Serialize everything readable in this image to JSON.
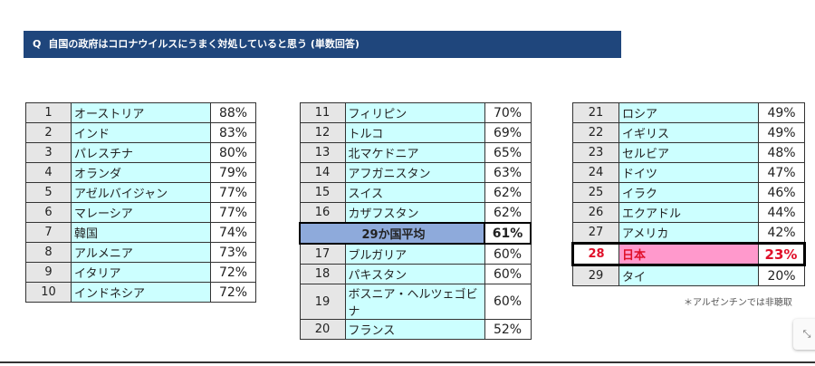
{
  "question": {
    "prefix": "Q",
    "text": "自国の政府はコロナウイルスにうまく対処していると思う (単数回答)"
  },
  "tables": [
    [
      {
        "rank": "1",
        "name": "オーストリア",
        "pct": "88%"
      },
      {
        "rank": "2",
        "name": "インド",
        "pct": "83%"
      },
      {
        "rank": "3",
        "name": "パレスチナ",
        "pct": "80%"
      },
      {
        "rank": "4",
        "name": "オランダ",
        "pct": "79%"
      },
      {
        "rank": "5",
        "name": "アゼルバイジャン",
        "pct": "77%"
      },
      {
        "rank": "6",
        "name": "マレーシア",
        "pct": "77%"
      },
      {
        "rank": "7",
        "name": "韓国",
        "pct": "74%"
      },
      {
        "rank": "8",
        "name": "アルメニア",
        "pct": "73%"
      },
      {
        "rank": "9",
        "name": "イタリア",
        "pct": "72%"
      },
      {
        "rank": "10",
        "name": "インドネシア",
        "pct": "72%"
      }
    ],
    [
      {
        "rank": "11",
        "name": "フィリピン",
        "pct": "70%"
      },
      {
        "rank": "12",
        "name": "トルコ",
        "pct": "69%"
      },
      {
        "rank": "13",
        "name": "北マケドニア",
        "pct": "65%"
      },
      {
        "rank": "14",
        "name": "アフガニスタン",
        "pct": "63%"
      },
      {
        "rank": "15",
        "name": "スイス",
        "pct": "62%"
      },
      {
        "rank": "16",
        "name": "カザフスタン",
        "pct": "62%"
      },
      {
        "avg": true,
        "name": "29か国平均",
        "pct": "61%"
      },
      {
        "rank": "17",
        "name": "ブルガリア",
        "pct": "60%"
      },
      {
        "rank": "18",
        "name": "パキスタン",
        "pct": "60%"
      },
      {
        "rank": "19",
        "name": "ボスニア・ヘルツェゴビナ",
        "pct": "60%"
      },
      {
        "rank": "20",
        "name": "フランス",
        "pct": "52%"
      }
    ],
    [
      {
        "rank": "21",
        "name": "ロシア",
        "pct": "49%"
      },
      {
        "rank": "22",
        "name": "イギリス",
        "pct": "49%"
      },
      {
        "rank": "23",
        "name": "セルビア",
        "pct": "48%"
      },
      {
        "rank": "24",
        "name": "ドイツ",
        "pct": "47%"
      },
      {
        "rank": "25",
        "name": "イラク",
        "pct": "46%"
      },
      {
        "rank": "26",
        "name": "エクアドル",
        "pct": "44%"
      },
      {
        "rank": "27",
        "name": "アメリカ",
        "pct": "42%"
      },
      {
        "rank": "28",
        "name": "日本",
        "pct": "23%",
        "highlight": true
      },
      {
        "rank": "29",
        "name": "タイ",
        "pct": "20%"
      }
    ]
  ],
  "note": "＊アルゼンチンでは非聴取",
  "colors": {
    "header": "#1f467c",
    "name_cell": "#ccffff",
    "avg": "#8eaadb",
    "japan": "#ff99cc",
    "japan_text": "#e0102a"
  }
}
